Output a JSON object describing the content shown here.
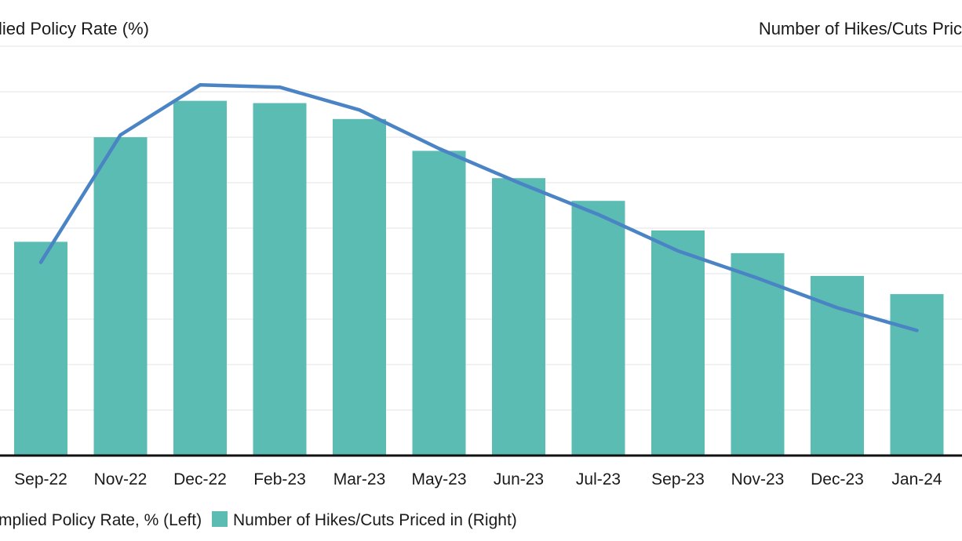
{
  "chart_data": {
    "type": "bar",
    "categories": [
      "Sep-22",
      "Nov-22",
      "Dec-22",
      "Feb-23",
      "Mar-23",
      "May-23",
      "Jun-23",
      "Jul-23",
      "Sep-23",
      "Nov-23",
      "Dec-23",
      "Jan-24"
    ],
    "series": [
      {
        "name": "Number of Hikes/Cuts Priced in (Right)",
        "kind": "bar",
        "axis": "right",
        "color": "#5bbcb3",
        "values": [
          4.7,
          7.0,
          7.8,
          7.75,
          7.4,
          6.7,
          6.1,
          5.6,
          4.95,
          4.45,
          3.95,
          3.55
        ]
      },
      {
        "name": "Implied Policy Rate, % (Left)",
        "kind": "line",
        "axis": "left",
        "color": "#4a84c4",
        "values": [
          4.25,
          7.05,
          8.15,
          8.1,
          7.6,
          6.75,
          6.0,
          5.3,
          4.5,
          3.9,
          3.25,
          2.75
        ]
      }
    ],
    "ylabel_left": "lied Policy Rate (%)",
    "ylabel_right": "Number of Hikes/Cuts Pric",
    "ylim": [
      0,
      9
    ],
    "grid": true,
    "legend": "bottom",
    "legend_entries": [
      {
        "label": "mplied Policy Rate, % (Left)",
        "kind": "line",
        "color": "#4a84c4"
      },
      {
        "label": "Number of Hikes/Cuts Priced in (Right)",
        "kind": "bar",
        "color": "#5bbcb3"
      }
    ]
  }
}
